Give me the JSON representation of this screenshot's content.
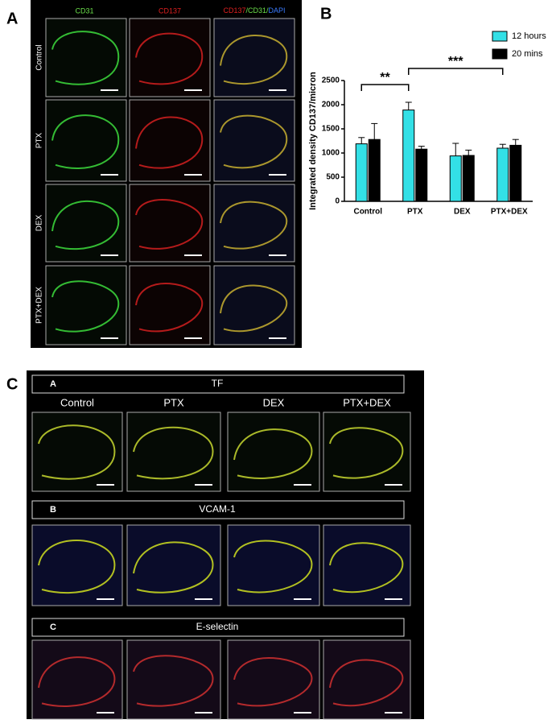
{
  "panel_a": {
    "label": "A",
    "column_headers": [
      "CD31",
      "CD137"
    ],
    "merged_header_parts": [
      "CD137",
      "/CD31/",
      "DAPI"
    ],
    "row_labels": [
      "Control",
      "PTX",
      "DEX",
      "PTX+DEX"
    ]
  },
  "chart_data": {
    "type": "bar",
    "panel_label": "B",
    "y_label": "Integrated density CD137/micron",
    "categories": [
      "Control",
      "PTX",
      "DEX",
      "PTX+DEX"
    ],
    "series": [
      {
        "name": "12 hours",
        "color": "#33e0e6",
        "values": [
          1190,
          1890,
          940,
          1100
        ],
        "errors": [
          130,
          160,
          260,
          80
        ]
      },
      {
        "name": "20 mins",
        "color": "#000000",
        "values": [
          1280,
          1080,
          950,
          1160
        ],
        "errors": [
          330,
          60,
          110,
          120
        ]
      }
    ],
    "annotations": [
      "**",
      "***"
    ],
    "ylim": [
      0,
      2500
    ],
    "yticks": [
      0,
      500,
      1000,
      1500,
      2000,
      2500
    ],
    "legend": "top-right"
  },
  "panel_c": {
    "label": "C",
    "column_headers": [
      "Control",
      "PTX",
      "DEX",
      "PTX+DEX"
    ],
    "sections": [
      {
        "letter": "A",
        "title": "TF"
      },
      {
        "letter": "B",
        "title": "VCAM-1"
      },
      {
        "letter": "C",
        "title": "E-selectin"
      }
    ]
  }
}
